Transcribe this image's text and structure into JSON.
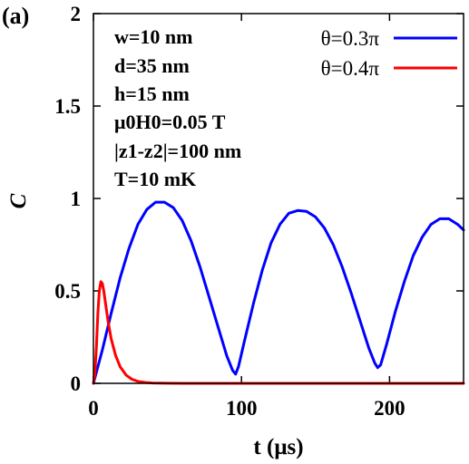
{
  "panel_label": "(a)",
  "parameters": [
    "w=10 nm",
    "d=35 nm",
    "h=15 nm",
    "μ0H0=0.05 T",
    "|z1-z2|=100 nm",
    "T=10 mK"
  ],
  "chart_data": {
    "type": "line",
    "xlabel": "t (μs)",
    "ylabel": "C",
    "xlim": [
      0,
      250
    ],
    "ylim": [
      0,
      2
    ],
    "x_ticks": [
      0,
      100,
      200
    ],
    "y_ticks": [
      0,
      0.5,
      1,
      1.5,
      2
    ],
    "x_tick_labels": [
      "0",
      "100",
      "200"
    ],
    "y_tick_labels": [
      "0",
      "0.5",
      "1",
      "1.5",
      "2"
    ],
    "grid": false,
    "legend_position": "top-right",
    "series": [
      {
        "name": "θ=0.3π",
        "color": "#0000ff",
        "x": [
          0,
          6,
          12,
          18,
          24,
          30,
          36,
          42,
          48,
          54,
          60,
          66,
          72,
          78,
          84,
          90,
          94,
          96,
          98,
          102,
          108,
          114,
          120,
          126,
          132,
          138,
          144,
          150,
          156,
          162,
          168,
          174,
          180,
          186,
          190,
          192,
          194,
          198,
          204,
          210,
          216,
          222,
          228,
          234,
          240,
          246,
          250
        ],
        "y": [
          0,
          0.18,
          0.38,
          0.57,
          0.73,
          0.86,
          0.94,
          0.98,
          0.98,
          0.95,
          0.88,
          0.77,
          0.63,
          0.47,
          0.31,
          0.15,
          0.07,
          0.05,
          0.09,
          0.23,
          0.43,
          0.61,
          0.76,
          0.86,
          0.92,
          0.935,
          0.93,
          0.9,
          0.84,
          0.75,
          0.63,
          0.49,
          0.34,
          0.19,
          0.11,
          0.085,
          0.1,
          0.21,
          0.39,
          0.55,
          0.69,
          0.79,
          0.86,
          0.89,
          0.89,
          0.86,
          0.83
        ]
      },
      {
        "name": "θ=0.4π",
        "color": "#ff0000",
        "x": [
          0,
          1,
          2,
          3,
          4,
          5,
          6,
          7,
          8,
          10,
          12,
          15,
          18,
          22,
          26,
          30,
          35,
          40,
          50,
          60,
          80,
          100,
          150,
          200,
          250
        ],
        "y": [
          0,
          0.05,
          0.2,
          0.38,
          0.5,
          0.55,
          0.54,
          0.5,
          0.44,
          0.33,
          0.24,
          0.15,
          0.09,
          0.045,
          0.022,
          0.011,
          0.005,
          0.002,
          0.0005,
          0,
          0,
          0,
          0,
          0,
          0
        ]
      }
    ]
  }
}
